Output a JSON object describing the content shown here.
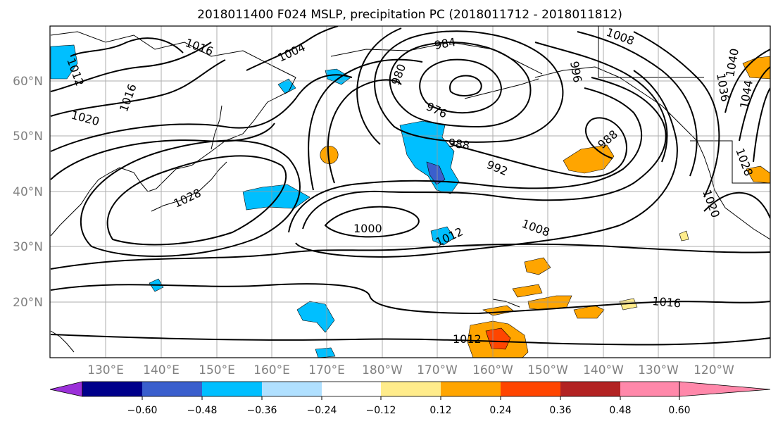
{
  "title": "2018011400 F024 MSLP, precipitation PC (2018011712 - 2018011812)",
  "map": {
    "lon_labels": [
      "130°E",
      "140°E",
      "150°E",
      "160°E",
      "170°E",
      "180°W",
      "170°W",
      "160°W",
      "150°W",
      "140°W",
      "130°W",
      "120°W"
    ],
    "lat_labels": [
      "60°N",
      "50°N",
      "40°N",
      "30°N",
      "20°N"
    ],
    "isobar_labels": [
      "1016",
      "1012",
      "1016",
      "1004",
      "984",
      "980",
      "976",
      "1000",
      "1012",
      "1008",
      "992",
      "988",
      "988",
      "1028",
      "1020",
      "1012",
      "1016",
      "1020",
      "996",
      "1036",
      "1040",
      "1044",
      "1028",
      "1008"
    ]
  },
  "colorbar": {
    "colors": [
      "#9b30d9",
      "#00008b",
      "#3a5fcd",
      "#00bfff",
      "#b0e0ff",
      "#ffffff",
      "#ffec8b",
      "#ffa500",
      "#ff4500",
      "#b22222",
      "#ff88aa"
    ],
    "tick_labels": [
      "−0.60",
      "−0.48",
      "−0.36",
      "−0.24",
      "−0.12",
      "0.12",
      "0.24",
      "0.36",
      "0.48",
      "0.60"
    ]
  }
}
